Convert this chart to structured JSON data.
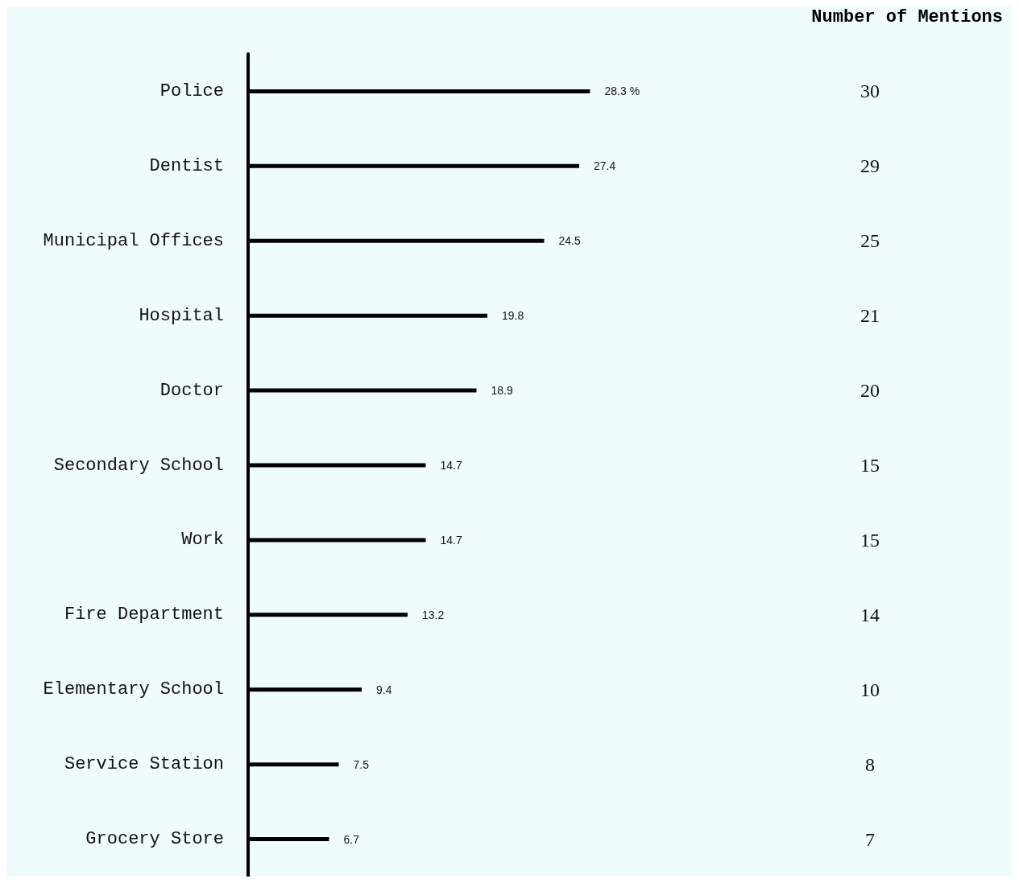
{
  "chart_data": {
    "type": "bar",
    "orientation": "horizontal",
    "categories": [
      "Police",
      "Dentist",
      "Municipal Offices",
      "Hospital",
      "Doctor",
      "Secondary School",
      "Work",
      "Fire Department",
      "Elementary School",
      "Service Station",
      "Grocery Store"
    ],
    "values": [
      28.3,
      27.4,
      24.5,
      19.8,
      18.9,
      14.7,
      14.7,
      13.2,
      9.4,
      7.5,
      6.7
    ],
    "value_labels": [
      "28.3 %",
      "27.4",
      "24.5",
      "19.8",
      "18.9",
      "14.7",
      "14.7",
      "13.2",
      "9.4",
      "7.5",
      "6.7"
    ],
    "color": "#000000",
    "grid": false,
    "annotations": [
      "Number of Mentions",
      "30",
      "29",
      "25",
      "21",
      "20",
      "15",
      "15",
      "14",
      "10",
      "8",
      "7"
    ]
  }
}
